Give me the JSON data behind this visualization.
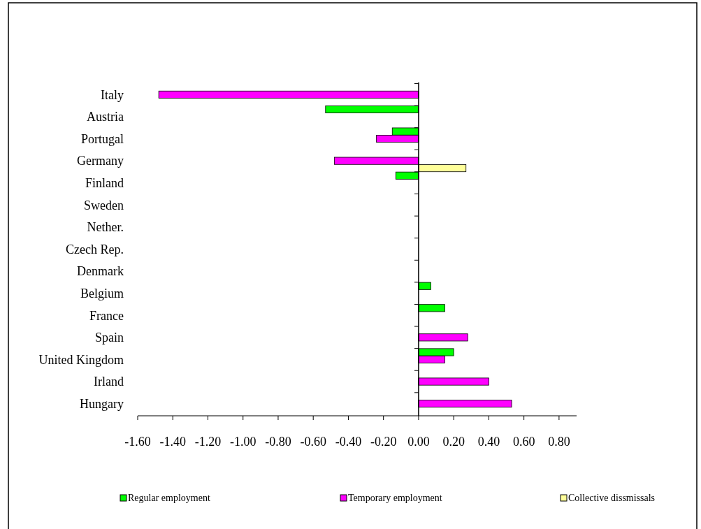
{
  "chart_data": {
    "type": "bar",
    "orientation": "horizontal",
    "categories": [
      "Italy",
      "Austria",
      "Portugal",
      "Germany",
      "Finland",
      "Sweden",
      "Nether.",
      "Czech Rep.",
      "Denmark",
      "Belgium",
      "France",
      "Spain",
      "United Kingdom",
      "Irland",
      "Hungary"
    ],
    "series": [
      {
        "name": "Regular employment",
        "color": "#00ff00",
        "values": [
          0,
          -0.53,
          -0.15,
          0,
          -0.13,
          0,
          0,
          0,
          0,
          0.07,
          0.15,
          0,
          0.2,
          0,
          0
        ]
      },
      {
        "name": "Temporary employment",
        "color": "#ff00ff",
        "values": [
          -1.48,
          0,
          -0.24,
          -0.48,
          0,
          0,
          0,
          0,
          0,
          0,
          0,
          0.28,
          0.15,
          0.4,
          0.53
        ]
      },
      {
        "name": "Collective dissmissals",
        "color": "#ffff99",
        "values": [
          0,
          0,
          0,
          0.27,
          0,
          0,
          0,
          0,
          0,
          0,
          0,
          0,
          0,
          0,
          0
        ]
      }
    ],
    "xlim": [
      -1.6,
      0.9
    ],
    "xticks": [
      {
        "value": -1.6,
        "label": "-1.60"
      },
      {
        "value": -1.4,
        "label": "-1.40"
      },
      {
        "value": -1.2,
        "label": "-1.20"
      },
      {
        "value": -1.0,
        "label": "-1.00"
      },
      {
        "value": -0.8,
        "label": "-0.80"
      },
      {
        "value": -0.6,
        "label": "-0.60"
      },
      {
        "value": -0.4,
        "label": "-0.40"
      },
      {
        "value": -0.2,
        "label": "-0.20"
      },
      {
        "value": 0,
        "label": "0.00"
      },
      {
        "value": 0.2,
        "label": "0.20"
      },
      {
        "value": 0.4,
        "label": "0.40"
      },
      {
        "value": 0.6,
        "label": "0.60"
      },
      {
        "value": 0.8,
        "label": "0.80"
      }
    ],
    "legend": "bottom"
  }
}
